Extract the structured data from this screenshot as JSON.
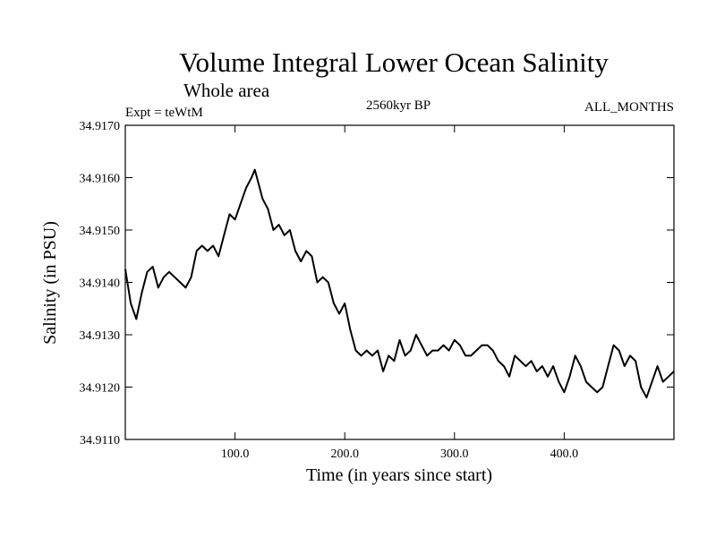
{
  "chart_data": {
    "type": "line",
    "title": "Volume Integral Lower Ocean Salinity",
    "subtitle": "Whole area",
    "expt_label": "Expt = teWtM",
    "period_label": "2560kyr BP",
    "months_label": "ALL_MONTHS",
    "xlabel": "Time (in years since start)",
    "ylabel": "Salinity (in PSU)",
    "xlim": [
      0,
      500
    ],
    "ylim": [
      34.911,
      34.917
    ],
    "x_ticks": [
      100,
      200,
      300,
      400
    ],
    "x_tick_labels": [
      "100.0",
      "200.0",
      "300.0",
      "400.0"
    ],
    "y_ticks": [
      34.911,
      34.912,
      34.913,
      34.914,
      34.915,
      34.916,
      34.917
    ],
    "y_tick_labels": [
      "34.9110",
      "34.9120",
      "34.9130",
      "34.9140",
      "34.9150",
      "34.9160",
      "34.9170"
    ],
    "series": [
      {
        "name": "salinity",
        "x": [
          0,
          5,
          10,
          15,
          20,
          25,
          30,
          35,
          40,
          45,
          50,
          55,
          60,
          65,
          70,
          75,
          80,
          85,
          90,
          95,
          100,
          105,
          110,
          115,
          118,
          120,
          125,
          130,
          135,
          140,
          145,
          150,
          155,
          160,
          165,
          170,
          175,
          180,
          185,
          190,
          195,
          200,
          205,
          210,
          215,
          220,
          225,
          230,
          235,
          240,
          245,
          250,
          255,
          260,
          265,
          270,
          275,
          280,
          285,
          290,
          295,
          300,
          305,
          310,
          315,
          320,
          325,
          330,
          335,
          340,
          345,
          350,
          355,
          360,
          365,
          370,
          375,
          380,
          385,
          390,
          395,
          400,
          405,
          410,
          415,
          420,
          425,
          430,
          435,
          440,
          445,
          450,
          455,
          460,
          465,
          470,
          475,
          480,
          485,
          490,
          495,
          500
        ],
        "values": [
          34.91425,
          34.9136,
          34.9133,
          34.9138,
          34.9142,
          34.9143,
          34.9139,
          34.9141,
          34.9142,
          34.9141,
          34.914,
          34.9139,
          34.9141,
          34.9146,
          34.9147,
          34.9146,
          34.9147,
          34.9145,
          34.9149,
          34.9153,
          34.9152,
          34.9155,
          34.9158,
          34.916,
          34.91615,
          34.916,
          34.9156,
          34.9154,
          34.915,
          34.9151,
          34.9149,
          34.915,
          34.9146,
          34.9144,
          34.9146,
          34.9145,
          34.914,
          34.9141,
          34.914,
          34.9136,
          34.9134,
          34.9136,
          34.9131,
          34.9127,
          34.9126,
          34.9127,
          34.9126,
          34.9127,
          34.9123,
          34.9126,
          34.9125,
          34.9129,
          34.9126,
          34.9127,
          34.913,
          34.9128,
          34.9126,
          34.9127,
          34.9127,
          34.9128,
          34.9127,
          34.9129,
          34.9128,
          34.9126,
          34.9126,
          34.9127,
          34.9128,
          34.9128,
          34.9127,
          34.9125,
          34.9124,
          34.9122,
          34.9126,
          34.9125,
          34.9124,
          34.9125,
          34.9123,
          34.9124,
          34.9122,
          34.9124,
          34.9121,
          34.9119,
          34.9122,
          34.9126,
          34.9124,
          34.9121,
          34.912,
          34.9119,
          34.912,
          34.9124,
          34.9128,
          34.9127,
          34.9124,
          34.9126,
          34.9125,
          34.912,
          34.9118,
          34.9121,
          34.9124,
          34.9121,
          34.9122,
          34.9123
        ]
      }
    ]
  }
}
